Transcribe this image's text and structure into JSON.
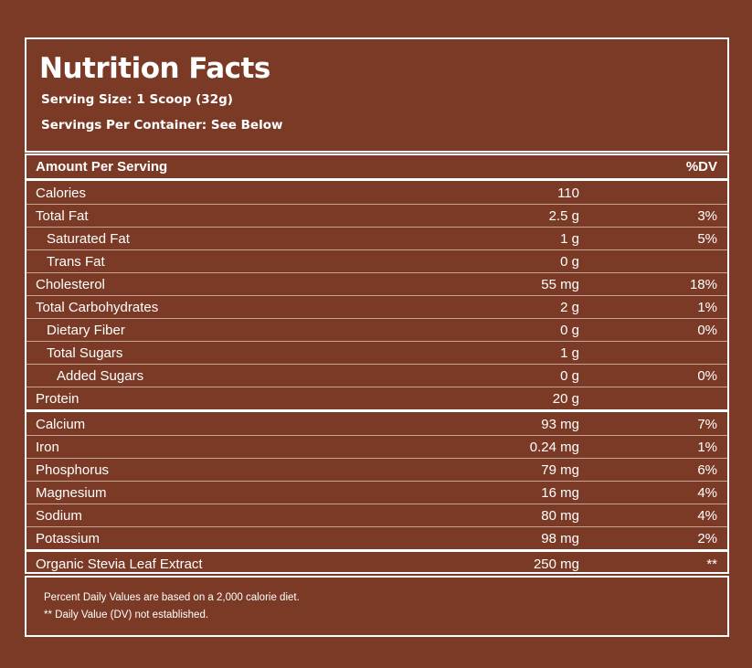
{
  "header": {
    "title": "Nutrition Facts",
    "serving_size": "Serving Size: 1 Scoop (32g)",
    "servings_per_container": "Servings Per Container: See Below"
  },
  "table": {
    "column_header_name": "Amount Per Serving",
    "column_header_dv": "%DV",
    "rows": [
      {
        "name": "Calories",
        "amount": "110",
        "dv": ""
      },
      {
        "name": "Total Fat",
        "amount": "2.5 g",
        "dv": "3%"
      },
      {
        "name": "Saturated Fat",
        "amount": "1 g",
        "dv": "5%"
      },
      {
        "name": "Trans Fat",
        "amount": "0 g",
        "dv": ""
      },
      {
        "name": "Cholesterol",
        "amount": "55 mg",
        "dv": "18%"
      },
      {
        "name": "Total Carbohydrates",
        "amount": "2 g",
        "dv": "1%"
      },
      {
        "name": "Dietary Fiber",
        "amount": "0 g",
        "dv": "0%"
      },
      {
        "name": "Total Sugars",
        "amount": "1 g",
        "dv": ""
      },
      {
        "name": "Added Sugars",
        "amount": "0 g",
        "dv": "0%"
      },
      {
        "name": "Protein",
        "amount": "20 g",
        "dv": ""
      },
      {
        "name": "Calcium",
        "amount": "93 mg",
        "dv": "7%"
      },
      {
        "name": "Iron",
        "amount": "0.24 mg",
        "dv": "1%"
      },
      {
        "name": "Phosphorus",
        "amount": "79 mg",
        "dv": "6%"
      },
      {
        "name": "Magnesium",
        "amount": "16 mg",
        "dv": "4%"
      },
      {
        "name": "Sodium",
        "amount": "80 mg",
        "dv": "4%"
      },
      {
        "name": "Potassium",
        "amount": "98 mg",
        "dv": "2%"
      },
      {
        "name": "Organic Stevia Leaf Extract",
        "amount": "250 mg",
        "dv": "**"
      }
    ]
  },
  "footer": {
    "note_1": "Percent Daily Values are based on a 2,000 calorie diet.",
    "note_2": "** Daily Value (DV) not established."
  },
  "colors": {
    "background": "#7b3a26",
    "text": "#ffffff",
    "rule_thin": "#c8a597"
  }
}
